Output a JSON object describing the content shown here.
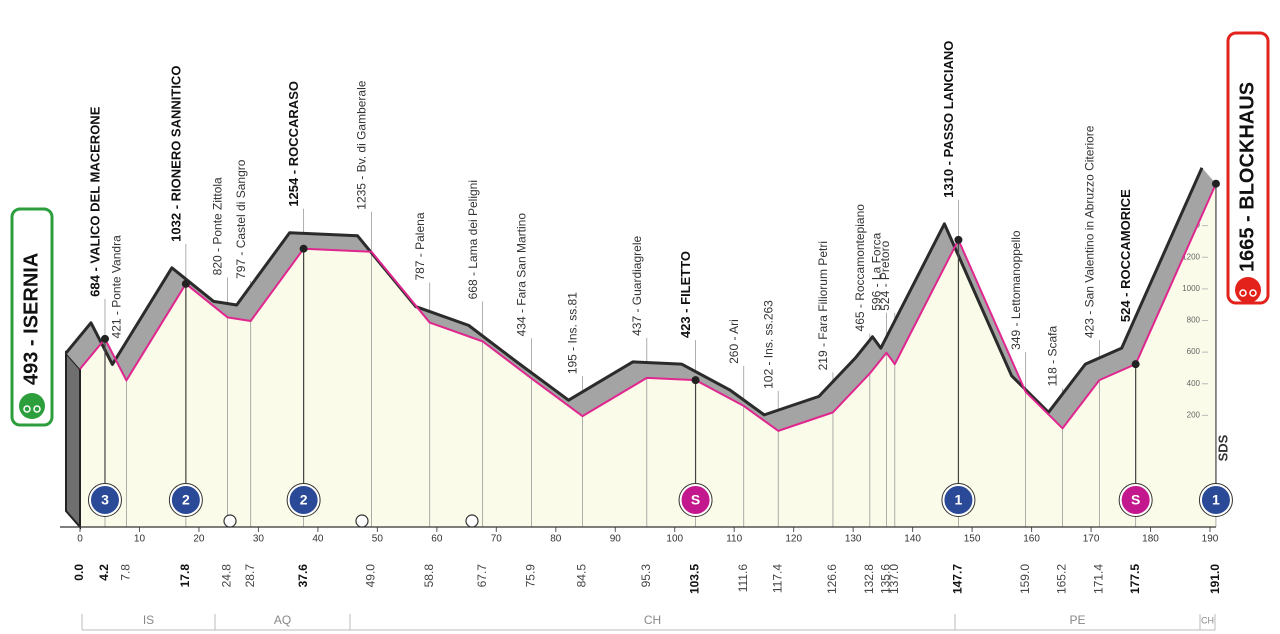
{
  "chart_data": {
    "type": "elevation-profile",
    "xlim": [
      0,
      190
    ],
    "ylim": [
      0,
      1600
    ],
    "xticks": [
      0,
      10,
      20,
      30,
      40,
      50,
      60,
      70,
      80,
      90,
      100,
      110,
      120,
      130,
      140,
      150,
      160,
      170,
      180,
      190
    ],
    "yticks": [
      200,
      400,
      600,
      800,
      1000,
      1200,
      1400
    ],
    "line_color": "#e0268f",
    "ribbon_color": "#a4a4a4",
    "fill_color": "#fafbe8",
    "start_color": "#2c9e3c",
    "finish_color": "#e3231b",
    "climb_color": "#2a4a97",
    "sprint_color": "#c2178d",
    "logo": "SDS",
    "regions": [
      "IS",
      "AQ",
      "CH",
      "PE",
      "CH"
    ],
    "waypoints": [
      {
        "label": "493 - ISERNIA",
        "altitude": 493,
        "km": {
          "value": 0,
          "label": "0.0"
        },
        "bold": true
      },
      {
        "label": "684 - VALICO DEL MACERONE",
        "altitude": 684,
        "km": 4.2,
        "bold": true,
        "category": "3"
      },
      {
        "label": "421 - Ponte Vandra",
        "altitude": 421,
        "km": 7.8
      },
      {
        "label": "1032 - RIONERO SANNITICO",
        "altitude": 1032,
        "km": 17.8,
        "bold": true,
        "category": "2"
      },
      {
        "label": "820 - Ponte Zittola",
        "altitude": 820,
        "km": 24.8
      },
      {
        "label": "797 - Castel di Sangro",
        "altitude": 797,
        "km": 28.7
      },
      {
        "label": "1254 - ROCCARASO",
        "altitude": 1254,
        "km": 37.6,
        "bold": true,
        "category": "2"
      },
      {
        "label": "1235 - Bv. di Gamberale",
        "altitude": 1235,
        "km": {
          "value": 49,
          "label": "49.0"
        }
      },
      {
        "label": "787 - Palena",
        "altitude": 787,
        "km": 58.8
      },
      {
        "label": "668 - Lama dei Peligni",
        "altitude": 668,
        "km": 67.7
      },
      {
        "label": "434 - Fara San Martino",
        "altitude": 434,
        "km": 75.9
      },
      {
        "label": "195 - Ins. ss.81",
        "altitude": 195,
        "km": 84.5
      },
      {
        "label": "437 - Guardiagrele",
        "altitude": 437,
        "km": 95.3
      },
      {
        "label": "423 - FILETTO",
        "altitude": 423,
        "km": 103.5,
        "bold": true,
        "category": "S"
      },
      {
        "label": "260 - Ari",
        "altitude": 260,
        "km": 111.6
      },
      {
        "label": "102 - Ins. ss.263",
        "altitude": 102,
        "km": 117.4
      },
      {
        "label": "219 - Fara Filiorum Petri",
        "altitude": 219,
        "km": 126.6
      },
      {
        "label": "465 - Roccamontepiano",
        "altitude": 465,
        "km": 132.8
      },
      {
        "label": "596 - La Forca",
        "altitude": 596,
        "km": 135.6
      },
      {
        "label": "524 - Pretoro",
        "altitude": 524,
        "km": {
          "value": 137,
          "label": "137.0"
        }
      },
      {
        "label": "1310 - PASSO LANCIANO",
        "altitude": 1310,
        "km": 147.7,
        "bold": true,
        "category": "1"
      },
      {
        "label": "349 - Lettomanoppello",
        "altitude": 349,
        "km": {
          "value": 159,
          "label": "159.0"
        }
      },
      {
        "label": "118 - Scafa",
        "altitude": 118,
        "km": 165.2
      },
      {
        "label": "423 - San Valentino in Abruzzo Citeriore",
        "altitude": 423,
        "km": 171.4
      },
      {
        "label": "524 - ROCCAMORICE",
        "altitude": 524,
        "km": 177.5,
        "bold": true,
        "category": "S"
      },
      {
        "label": "1665 - BLOCKHAUS",
        "altitude": 1665,
        "km": {
          "value": 191,
          "label": "191.0"
        },
        "bold": true,
        "category": "1"
      }
    ]
  }
}
